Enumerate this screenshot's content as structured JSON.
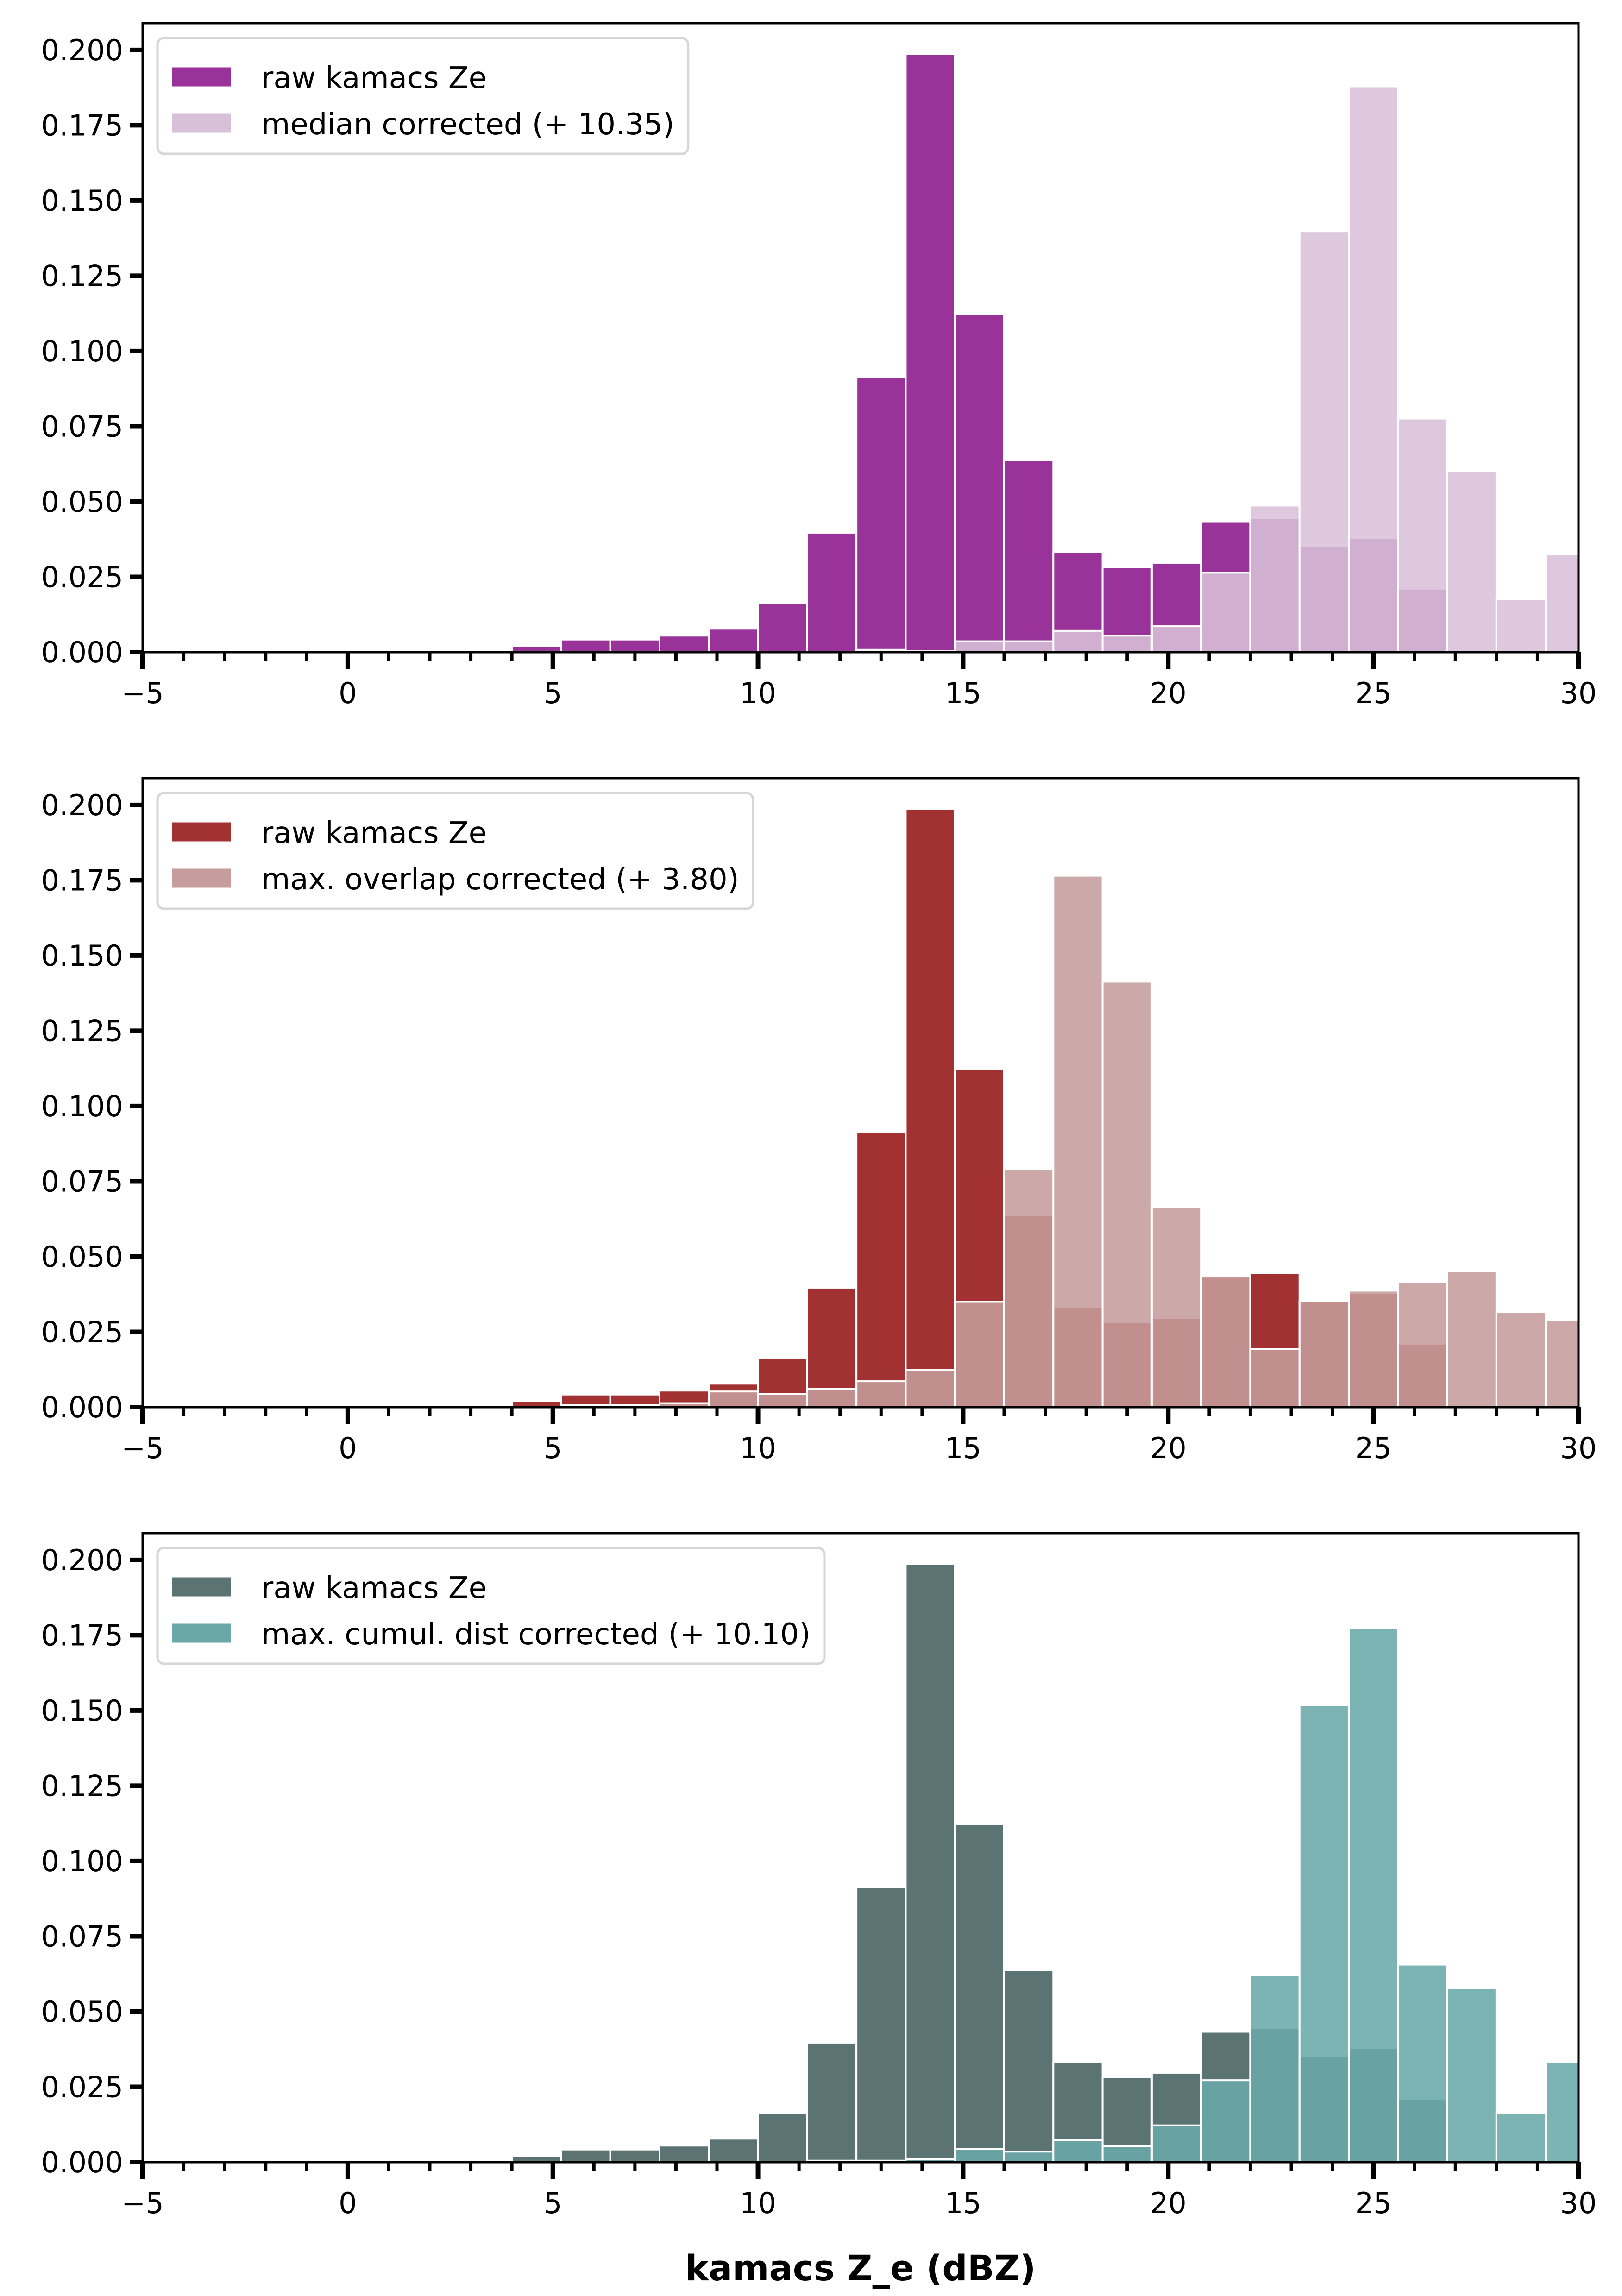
{
  "chart_data": [
    {
      "type": "bar",
      "subtype": "histogram",
      "panel": "top",
      "xlim": [
        -5,
        30
      ],
      "ylim": [
        0,
        0.2089
      ],
      "xticks": [
        "−5",
        "0",
        "5",
        "10",
        "15",
        "20",
        "25",
        "30"
      ],
      "xtick_values": [
        -5,
        0,
        5,
        10,
        15,
        20,
        25,
        30
      ],
      "yticks": [
        "0.000",
        "0.025",
        "0.050",
        "0.075",
        "0.100",
        "0.125",
        "0.150",
        "0.175",
        "0.200"
      ],
      "ytick_values": [
        0,
        0.025,
        0.05,
        0.075,
        0.1,
        0.125,
        0.15,
        0.175,
        0.2
      ],
      "xlabel": "",
      "ylabel": "",
      "grid": false,
      "legend_position": "top-left",
      "bin_start": 2.8,
      "bin_width": 1.2,
      "series": [
        {
          "name": "raw kamacs Ze",
          "color": "#993399",
          "values": [
            0.0002,
            0.0021,
            0.0042,
            0.0042,
            0.0055,
            0.0078,
            0.0162,
            0.0397,
            0.0913,
            0.1986,
            0.1123,
            0.0637,
            0.0333,
            0.0283,
            0.0297,
            0.0433,
            0.0445,
            0.0353,
            0.038,
            0.0211,
            0,
            0,
            0
          ]
        },
        {
          "name": "median corrected (+ 10.35)",
          "color": "#d8c0d8",
          "values": [
            0,
            0,
            0,
            0,
            0,
            0,
            0,
            0,
            0.0008,
            0.0003,
            0.0036,
            0.0036,
            0.0071,
            0.0055,
            0.0086,
            0.0264,
            0.0487,
            0.1398,
            0.1879,
            0.0776,
            0.06,
            0.0176,
            0.0325
          ]
        }
      ]
    },
    {
      "type": "bar",
      "subtype": "histogram",
      "panel": "middle",
      "xlim": [
        -5,
        30
      ],
      "ylim": [
        0,
        0.2089
      ],
      "xticks": [
        "−5",
        "0",
        "5",
        "10",
        "15",
        "20",
        "25",
        "30"
      ],
      "xtick_values": [
        -5,
        0,
        5,
        10,
        15,
        20,
        25,
        30
      ],
      "yticks": [
        "0.000",
        "0.025",
        "0.050",
        "0.075",
        "0.100",
        "0.125",
        "0.150",
        "0.175",
        "0.200"
      ],
      "ytick_values": [
        0,
        0.025,
        0.05,
        0.075,
        0.1,
        0.125,
        0.15,
        0.175,
        0.2
      ],
      "xlabel": "",
      "ylabel": "",
      "grid": false,
      "legend_position": "top-left",
      "bin_start": 2.8,
      "bin_width": 1.2,
      "series": [
        {
          "name": "raw kamacs Ze",
          "color": "#a23232",
          "values": [
            0.0002,
            0.0021,
            0.0042,
            0.0042,
            0.0055,
            0.0078,
            0.0162,
            0.0397,
            0.0913,
            0.1986,
            0.1123,
            0.0637,
            0.0333,
            0.0283,
            0.0297,
            0.0433,
            0.0445,
            0.0353,
            0.038,
            0.0211,
            0,
            0,
            0
          ]
        },
        {
          "name": "max. overlap corrected (+ 3.80)",
          "color": "#c69c9c",
          "values": [
            0,
            0,
            0.0007,
            0.0007,
            0.0013,
            0.0052,
            0.0044,
            0.006,
            0.0086,
            0.0123,
            0.035,
            0.079,
            0.1765,
            0.1413,
            0.0663,
            0.0437,
            0.0193,
            0.0352,
            0.0387,
            0.0416,
            0.0451,
            0.0316,
            0.0289
          ]
        }
      ]
    },
    {
      "type": "bar",
      "subtype": "histogram",
      "panel": "bottom",
      "xlim": [
        -5,
        30
      ],
      "ylim": [
        0,
        0.2089
      ],
      "xticks": [
        "−5",
        "0",
        "5",
        "10",
        "15",
        "20",
        "25",
        "30"
      ],
      "xtick_values": [
        -5,
        0,
        5,
        10,
        15,
        20,
        25,
        30
      ],
      "yticks": [
        "0.000",
        "0.025",
        "0.050",
        "0.075",
        "0.100",
        "0.125",
        "0.150",
        "0.175",
        "0.200"
      ],
      "ytick_values": [
        0,
        0.025,
        0.05,
        0.075,
        0.1,
        0.125,
        0.15,
        0.175,
        0.2
      ],
      "xlabel": "kamacs Z_e (dBZ)",
      "ylabel": "",
      "grid": false,
      "legend_position": "top-left",
      "bin_start": 2.8,
      "bin_width": 1.2,
      "series": [
        {
          "name": "raw kamacs Ze",
          "color": "#5b7473",
          "values": [
            0.0002,
            0.0021,
            0.0042,
            0.0042,
            0.0055,
            0.0078,
            0.0162,
            0.0397,
            0.0913,
            0.1986,
            0.1123,
            0.0637,
            0.0333,
            0.0283,
            0.0297,
            0.0433,
            0.0445,
            0.0353,
            0.038,
            0.0211,
            0,
            0,
            0
          ]
        },
        {
          "name": "max. cumul. dist corrected (+ 10.10)",
          "color": "#6aa8a8",
          "values": [
            0,
            0,
            0,
            0,
            0,
            0,
            0,
            0.0005,
            0.0005,
            0.001,
            0.0043,
            0.0035,
            0.0073,
            0.0053,
            0.0122,
            0.0272,
            0.062,
            0.1518,
            0.1773,
            0.0656,
            0.0578,
            0.0162,
            0.0332
          ]
        }
      ]
    }
  ]
}
